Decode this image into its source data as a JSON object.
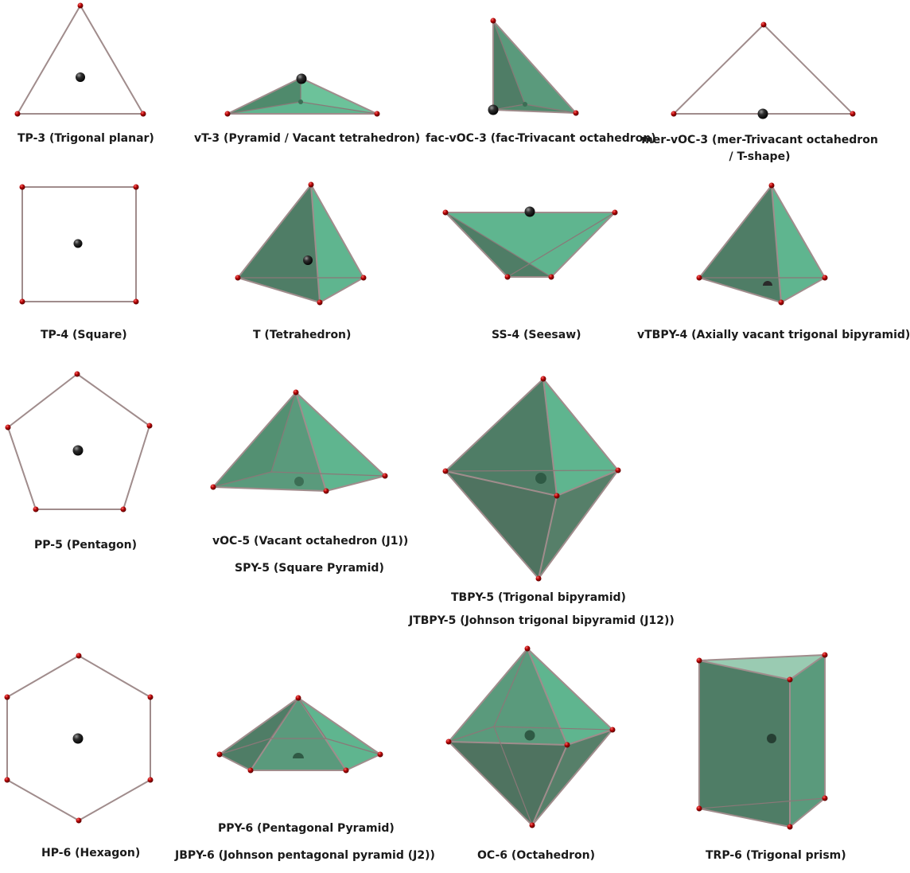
{
  "colors": {
    "flat_face": "#9acbb2",
    "face_light": "#5fb58f",
    "face_mid": "#559a7a",
    "face_dark": "#4f7d66",
    "vertex": "#c01010",
    "center_atom": "#2a2a2a",
    "edge": "#a08c8c",
    "label": "#1a1a1a"
  },
  "captions": {
    "tp3": "TP-3 (Trigonal planar)",
    "vt3": "vT-3 (Pyramid / Vacant tetrahedron)",
    "facvoc3": "fac-vOC-3 (fac-Trivacant octahedron)",
    "mervoc3": "mer-vOC-3 (mer-Trivacant octahedron / T-shape)",
    "tp4": "TP-4 (Square)",
    "t4": "T (Tetrahedron)",
    "ss4": "SS-4 (Seesaw)",
    "vtbpy4": "vTBPY-4 (Axially vacant trigonal bipyramid)",
    "pp5": "PP-5 (Pentagon)",
    "voc5": "vOC-5 (Vacant octahedron (J1))",
    "spy5": "SPY-5 (Square Pyramid)",
    "tbpy5": "TBPY-5 (Trigonal bipyramid)",
    "jtbpy5": "JTBPY-5 (Johnson trigonal bipyramid (J12))",
    "hp6": "HP-6 (Hexagon)",
    "ppy6": "PPY-6 (Pentagonal Pyramid)",
    "jbpy6": "JBPY-6 (Johnson pentagonal pyramid (J2))",
    "oc6": "OC-6 (Octahedron)",
    "trp6": "TRP-6 (Trigonal prism)"
  }
}
